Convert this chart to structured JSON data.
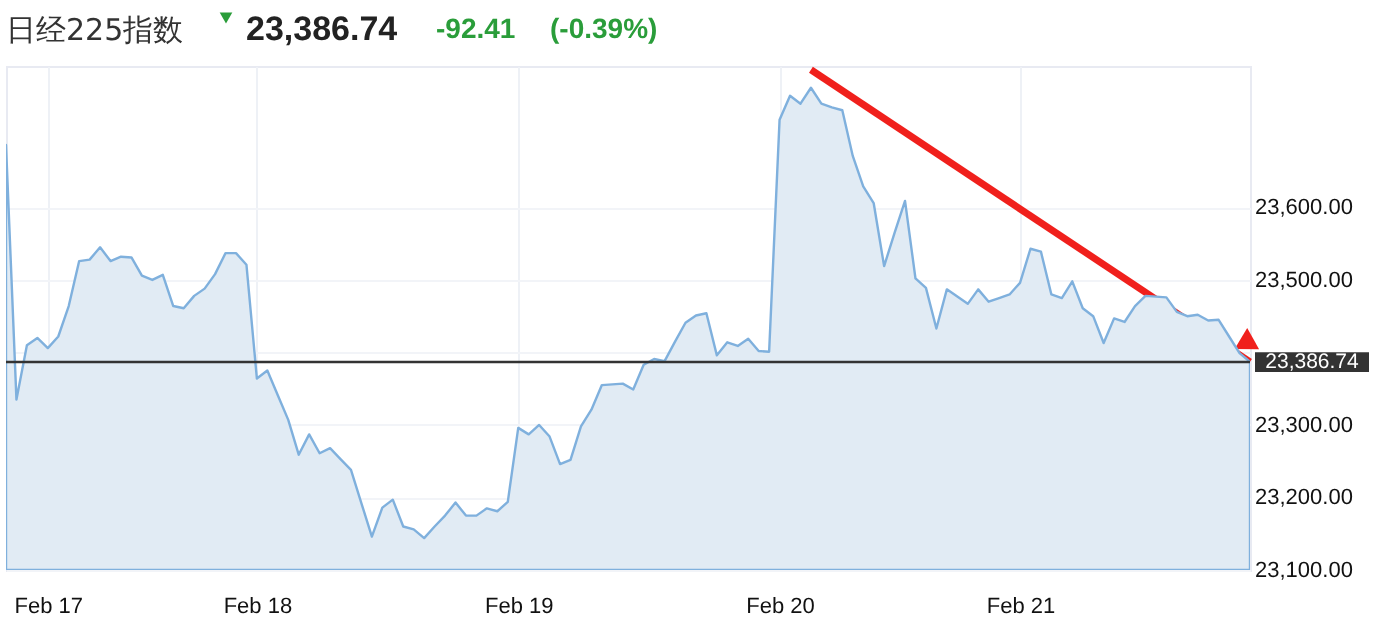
{
  "chart_data": {
    "type": "area",
    "title": "日经225指数",
    "annotations": [
      "23,386.74",
      "-92.41",
      "(-0.39%)"
    ],
    "categories": [
      null,
      null,
      null,
      null,
      "Feb 17",
      null,
      null,
      null,
      null,
      null,
      null,
      null,
      null,
      null,
      null,
      null,
      null,
      null,
      null,
      null,
      null,
      null,
      null,
      null,
      "Feb 18",
      null,
      null,
      null,
      null,
      null,
      null,
      null,
      null,
      null,
      null,
      null,
      null,
      null,
      null,
      null,
      null,
      null,
      null,
      null,
      null,
      null,
      null,
      null,
      null,
      "Feb 19",
      null,
      null,
      null,
      null,
      null,
      null,
      null,
      null,
      null,
      null,
      null,
      null,
      null,
      null,
      null,
      null,
      null,
      null,
      null,
      null,
      null,
      null,
      null,
      null,
      "Feb 20",
      null,
      null,
      null,
      null,
      null,
      null,
      null,
      null,
      null,
      null,
      null,
      null,
      null,
      null,
      null,
      null,
      null,
      null,
      null,
      null,
      null,
      null,
      "Feb 21",
      null,
      null,
      null,
      null,
      null,
      null,
      null,
      null,
      null,
      null,
      null,
      null,
      null,
      null,
      null,
      null,
      null,
      null,
      null,
      null,
      null,
      null
    ],
    "series": [
      {
        "color": "#e1ebf4",
        "values": [
          23686,
          23335,
          23410,
          23420,
          23406,
          23422,
          23464,
          23526,
          23528,
          23545,
          23526,
          23532,
          23531,
          23506,
          23500,
          23507,
          23464,
          23461,
          23478,
          23488,
          23508,
          23537,
          23537,
          23521,
          23364,
          23375,
          23341,
          23307,
          23259,
          23287,
          23261,
          23268,
          23253,
          23238,
          23192,
          23146,
          23186,
          23197,
          23160,
          23156,
          23144,
          23160,
          23175,
          23193,
          23175,
          23175,
          23185,
          23181,
          23194,
          23296,
          23287,
          23300,
          23284,
          23246,
          23252,
          23298,
          23321,
          23355,
          23356,
          23357,
          23349,
          23383,
          23391,
          23388,
          23415,
          23441,
          23451,
          23454,
          23396,
          23414,
          23409,
          23419,
          23402,
          23401,
          23721,
          23754,
          23743,
          23765,
          23743,
          23738,
          23734,
          23671,
          23629,
          23606,
          23519,
          23565,
          23609,
          23502,
          23489,
          23433,
          23487,
          23477,
          23467,
          23487,
          23470,
          23475,
          23480,
          23496,
          23543,
          23539,
          23480,
          23475,
          23498,
          23461,
          23450,
          23413,
          23447,
          23442,
          23464,
          23478,
          23477,
          23476,
          23456,
          23450,
          23452,
          23444,
          23445,
          23422,
          23399,
          23387
        ]
      }
    ],
    "ylim": [
      23100,
      23795
    ],
    "yticks": [
      {
        "value": 23100,
        "label": "23,100.00"
      },
      {
        "value": 23200,
        "label": "23,200.00"
      },
      {
        "value": 23300,
        "label": "23,300.00"
      },
      {
        "value": 23400,
        "label": null
      },
      {
        "value": 23500,
        "label": "23,500.00"
      },
      {
        "value": 23600,
        "label": "23,600.00"
      }
    ],
    "ref_lines": [
      {
        "axis": "y",
        "value": 23386.74,
        "label": "23,386.74",
        "color": "#333333"
      }
    ],
    "grid": true
  }
}
